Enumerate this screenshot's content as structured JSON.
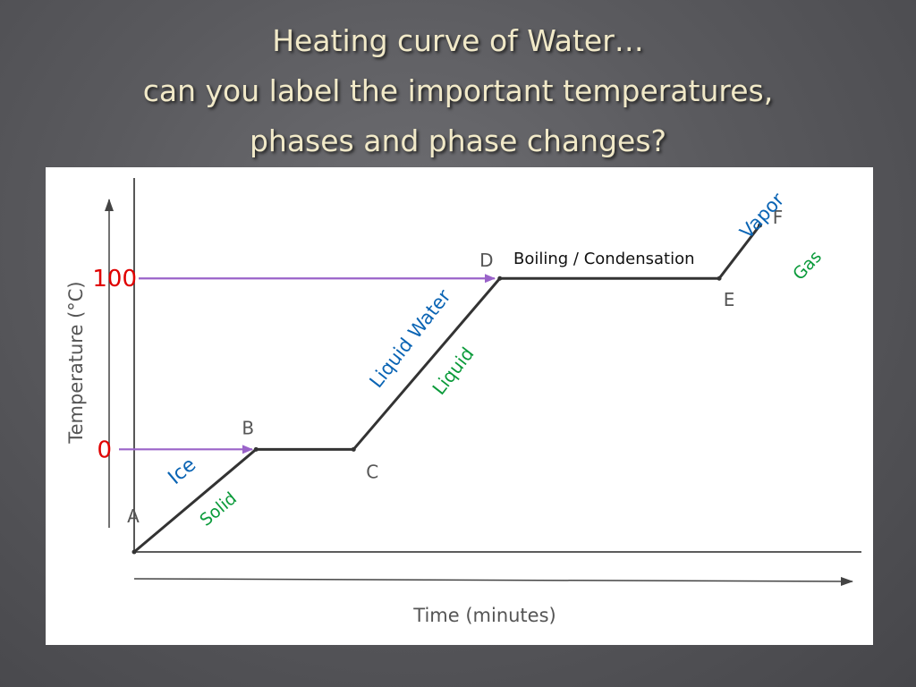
{
  "title": {
    "line1": "Heating curve of Water…",
    "line2": "can you label the important temperatures,",
    "line3": "phases and phase changes?"
  },
  "colors": {
    "curve": "#333333",
    "axis": "#444444",
    "arrow": "#9a63c9",
    "temp_label": "#e00000",
    "phase_blue": "#0a64b4",
    "state_green": "#0a9a3a",
    "text_gray": "#555555",
    "text_black": "#111111"
  },
  "chart_data": {
    "type": "line",
    "xlabel": "Time (minutes)",
    "ylabel": "Temperature (°C)",
    "y_marks": [
      {
        "value": 0,
        "label": "0"
      },
      {
        "value": 100,
        "label": "100"
      }
    ],
    "points": [
      {
        "label": "A",
        "t": 0,
        "temp": -60
      },
      {
        "label": "B",
        "t": 1.5,
        "temp": 0
      },
      {
        "label": "C",
        "t": 2.7,
        "temp": 0
      },
      {
        "label": "D",
        "t": 4.5,
        "temp": 100
      },
      {
        "label": "E",
        "t": 7.2,
        "temp": 100
      },
      {
        "label": "F",
        "t": 7.7,
        "temp": 131
      }
    ],
    "xlim": [
      0,
      8.95
    ],
    "ylim": [
      -60,
      165
    ],
    "annotations": {
      "ice": "Ice",
      "solid": "Solid",
      "liquid_water": "Liquid Water",
      "liquid": "Liquid",
      "boiling": "Boiling / Condensation",
      "vapor": "Vapor",
      "gas": "Gas"
    },
    "grid": false
  }
}
